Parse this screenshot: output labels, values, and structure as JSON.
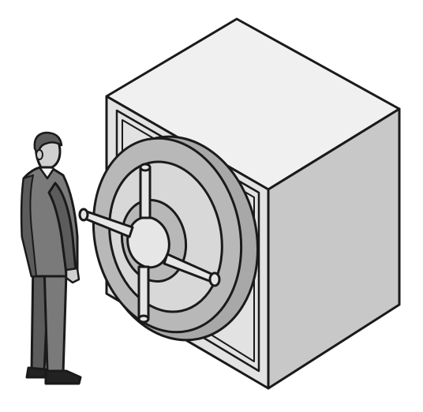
{
  "illustration": {
    "subject_icon": "vault-safe-icon",
    "figure_icon": "businessman-icon",
    "colors": {
      "background": "#ffffff",
      "outline": "#1a1a1a",
      "safe_top": "#f0f0f0",
      "safe_front": "#e2e2e2",
      "safe_side": "#c8c8c8",
      "door": "#b8b8b8",
      "door_inner": "#d8d8d8",
      "hub": "#e6e6e6",
      "suit": "#7a7a7a",
      "suit_dark": "#5c5c5c",
      "skin": "#d0d0d0",
      "shoe": "#222222"
    }
  }
}
